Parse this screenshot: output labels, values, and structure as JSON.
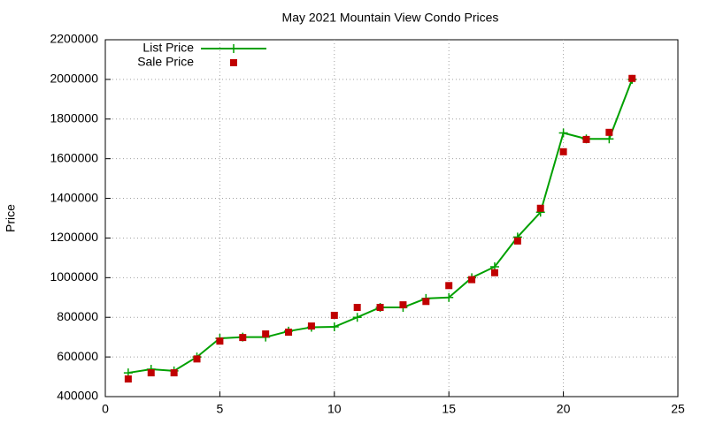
{
  "chart_data": {
    "type": "line",
    "title": "May 2021 Mountain View Condo Prices",
    "y_label": "Price",
    "x": [
      1,
      2,
      3,
      4,
      5,
      6,
      7,
      8,
      9,
      10,
      11,
      12,
      13,
      14,
      15,
      16,
      17,
      18,
      19,
      20,
      21,
      22,
      23
    ],
    "series": [
      {
        "name": "List Price",
        "color": "#00a000",
        "mode": "linespoints",
        "values": [
          520000,
          538000,
          530000,
          600000,
          694000,
          700000,
          700000,
          730000,
          750000,
          752000,
          800000,
          850000,
          850000,
          895000,
          900000,
          1000000,
          1055000,
          1205000,
          1330000,
          1730000,
          1700000,
          1700000,
          2000000
        ]
      },
      {
        "name": "Sale Price",
        "color": "#c00000",
        "mode": "points",
        "values": [
          489000,
          520000,
          520000,
          590000,
          680000,
          698000,
          716000,
          725000,
          756000,
          810000,
          850000,
          850000,
          863000,
          880000,
          960000,
          990000,
          1025000,
          1185000,
          1350000,
          1635000,
          1697000,
          1733000,
          2005000
        ]
      }
    ],
    "xlim": [
      0,
      25
    ],
    "xticks": [
      0,
      5,
      10,
      15,
      20,
      25
    ],
    "ylim": [
      400000,
      2200000
    ],
    "yticks": [
      400000,
      600000,
      800000,
      1000000,
      1200000,
      1400000,
      1600000,
      1800000,
      2000000,
      2200000
    ],
    "grid": true,
    "legend": "top-left"
  }
}
